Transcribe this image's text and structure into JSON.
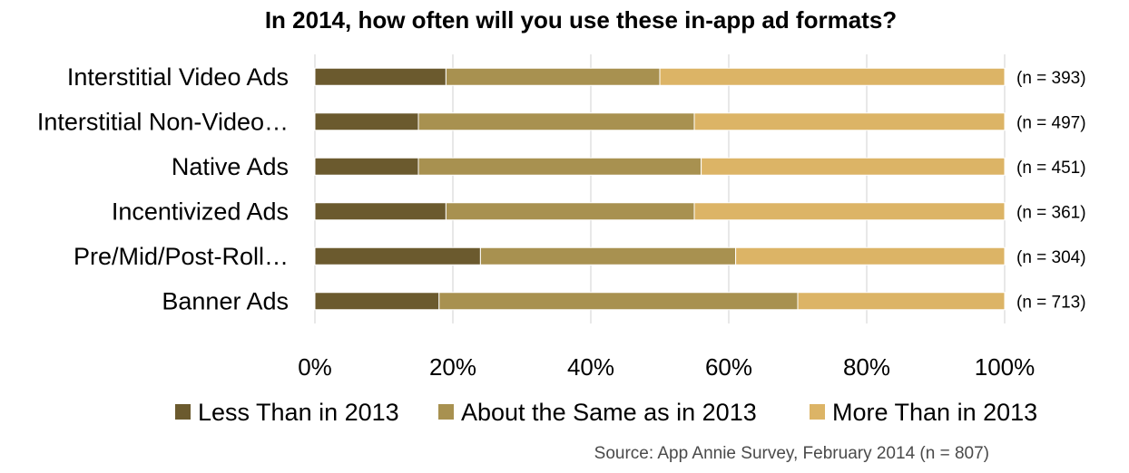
{
  "chart_data": {
    "type": "bar",
    "orientation": "horizontal",
    "stacked": "percent",
    "title": "In 2014, how often will you use these in-app ad formats?",
    "categories": [
      "Interstitial Video Ads",
      "Interstitial Non-Video…",
      "Native Ads",
      "Incentivized Ads",
      "Pre/Mid/Post-Roll…",
      "Banner Ads"
    ],
    "n_labels": [
      "(n = 393)",
      "(n = 497)",
      "(n = 451)",
      "(n = 361)",
      "(n = 304)",
      "(n = 713)"
    ],
    "series": [
      {
        "name": "Less Than in 2013",
        "color": "#6b5a2e",
        "values": [
          19,
          15,
          15,
          19,
          24,
          18
        ]
      },
      {
        "name": "About the Same as in 2013",
        "color": "#a89150",
        "values": [
          31,
          40,
          41,
          36,
          37,
          52
        ]
      },
      {
        "name": "More Than in 2013",
        "color": "#dcb466",
        "values": [
          50,
          45,
          44,
          45,
          39,
          30
        ]
      }
    ],
    "xlim": [
      0,
      100
    ],
    "x_ticks": [
      "0%",
      "20%",
      "40%",
      "60%",
      "80%",
      "100%"
    ],
    "grid": true,
    "legend_position": "bottom",
    "source": "Source: App Annie Survey, February 2014 (n = 807)"
  }
}
